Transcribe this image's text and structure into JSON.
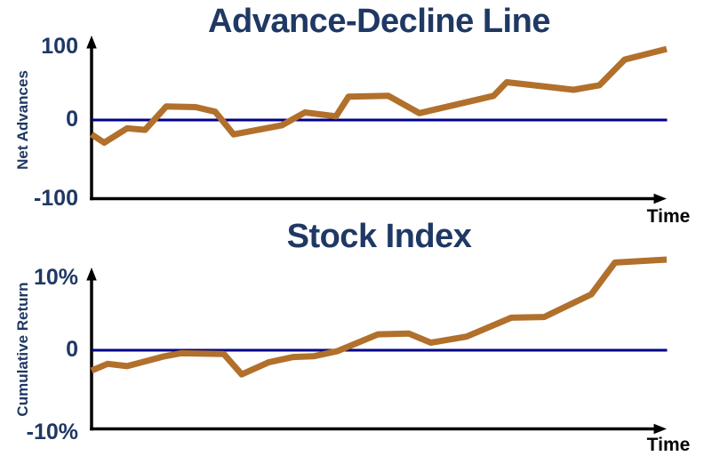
{
  "colors": {
    "title_text": "#1F3864",
    "zero_line": "#00008B",
    "series_line": "#B1702B",
    "axis": "#000000"
  },
  "charts": [
    {
      "title": "Advance-Decline Line",
      "y_axis_label": "Net Advances",
      "x_axis_label": "Time",
      "y_ticks": [
        "100",
        "0",
        "-100"
      ],
      "chart_data": {
        "type": "line",
        "title": "Advance-Decline Line",
        "xlabel": "Time",
        "ylabel": "Net Advances",
        "ylim": [
          -100,
          100
        ],
        "yticks": [
          100,
          0,
          -100
        ],
        "grid": false,
        "zero_line": true,
        "legend": "none",
        "x_pct": [
          0,
          2.2,
          6.2,
          9.3,
          13.0,
          18.1,
          21.5,
          24.7,
          28.9,
          33.1,
          37.1,
          42.5,
          44.7,
          51.6,
          57.0,
          69.9,
          72.2,
          83.8,
          88.3,
          92.7,
          100
        ],
        "values": [
          -19,
          -30,
          -11,
          -13,
          18,
          17,
          11,
          -19,
          -13,
          -7,
          10,
          5,
          31,
          32,
          9,
          32,
          50,
          40,
          46,
          80,
          94
        ]
      }
    },
    {
      "title": "Stock Index",
      "y_axis_label": "Cumulative Return",
      "x_axis_label": "Time",
      "y_ticks": [
        "10%",
        "0",
        "-10%"
      ],
      "chart_data": {
        "type": "line",
        "title": "Stock Index",
        "xlabel": "Time",
        "ylabel": "Cumulative Return",
        "ylim": [
          -10,
          10
        ],
        "yticks": [
          10,
          0,
          -10
        ],
        "ytick_format": "percent",
        "grid": false,
        "zero_line": true,
        "legend": "none",
        "x_pct": [
          0,
          2.8,
          6.2,
          12.7,
          15.5,
          23.0,
          26.1,
          30.8,
          35.1,
          38.6,
          42.8,
          49.8,
          55.2,
          59.0,
          65.2,
          73.0,
          78.7,
          86.9,
          91.0,
          100
        ],
        "values": [
          -2.7,
          -1.8,
          -2.1,
          -0.8,
          -0.4,
          -0.5,
          -3.2,
          -1.6,
          -0.9,
          -0.8,
          -0.1,
          2.1,
          2.2,
          1.0,
          1.8,
          4.3,
          4.4,
          7.4,
          11.6,
          12.0
        ]
      }
    }
  ]
}
